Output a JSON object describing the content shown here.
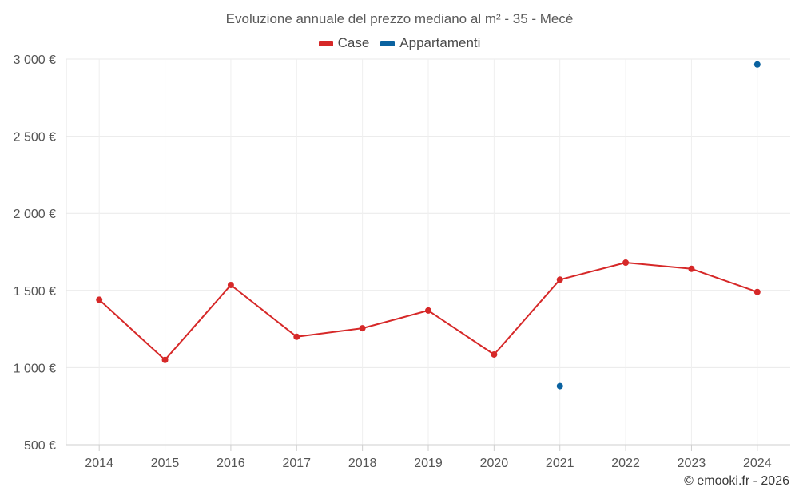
{
  "chart_data": {
    "type": "line",
    "title": "Evoluzione annuale del prezzo mediano al m² - 35 - Mecé",
    "xlabel": "",
    "ylabel": "",
    "categories": [
      "2014",
      "2015",
      "2016",
      "2017",
      "2018",
      "2019",
      "2020",
      "2021",
      "2022",
      "2023",
      "2024"
    ],
    "ylim": [
      500,
      3000
    ],
    "yticks": [
      500,
      1000,
      1500,
      2000,
      2500,
      3000
    ],
    "ytick_labels": [
      "500 €",
      "1 000 €",
      "1 500 €",
      "2 000 €",
      "2 500 €",
      "3 000 €"
    ],
    "grid": true,
    "legend_position": "top-center",
    "series": [
      {
        "name": "Case",
        "color": "#d62828",
        "values": [
          1440,
          1050,
          1535,
          1200,
          1255,
          1370,
          1085,
          1570,
          1680,
          1640,
          1490
        ]
      },
      {
        "name": "Appartamenti",
        "color": "#0a62a0",
        "values": [
          null,
          null,
          null,
          null,
          null,
          null,
          null,
          880,
          null,
          null,
          2965
        ]
      }
    ]
  },
  "footer": "© emooki.fr - 2026"
}
